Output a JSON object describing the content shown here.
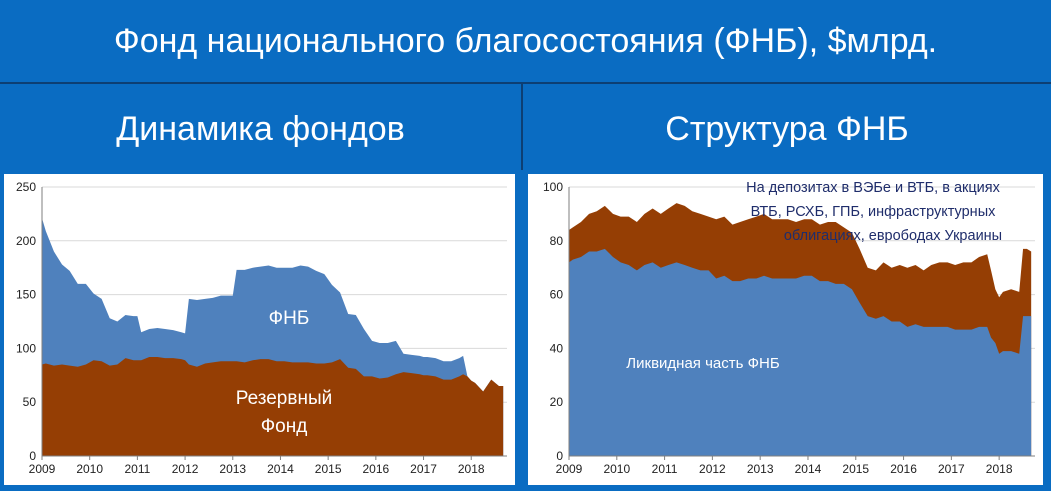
{
  "header": {
    "title": "Фонд национального благосостояния (ФНБ), $млрд."
  },
  "left_heading": "Динамика фондов",
  "right_heading": "Структура ФНБ",
  "colors": {
    "banner": "#0a6cc2",
    "blue_area": "#4f81bd",
    "brown_area": "#953e04",
    "grid": "#d9d9d9"
  },
  "chart_data": [
    {
      "type": "area",
      "title": "",
      "xlabel": "",
      "ylabel": "",
      "xlim": [
        2009.0,
        2018.75
      ],
      "ylim": [
        0,
        250
      ],
      "yticks": [
        0,
        50,
        100,
        150,
        200,
        250
      ],
      "xticks": [
        "2009",
        "2010",
        "2011",
        "2012",
        "2013",
        "2014",
        "2015",
        "2016",
        "2017",
        "2018"
      ],
      "grid": true,
      "x": [
        2009.0,
        2009.08,
        2009.25,
        2009.42,
        2009.58,
        2009.75,
        2009.92,
        2010.08,
        2010.25,
        2010.42,
        2010.58,
        2010.75,
        2010.92,
        2011.0,
        2011.08,
        2011.25,
        2011.42,
        2011.58,
        2011.75,
        2011.92,
        2012.0,
        2012.08,
        2012.25,
        2012.42,
        2012.58,
        2012.75,
        2012.92,
        2013.0,
        2013.08,
        2013.25,
        2013.42,
        2013.58,
        2013.75,
        2013.92,
        2014.08,
        2014.25,
        2014.42,
        2014.58,
        2014.75,
        2014.92,
        2015.08,
        2015.25,
        2015.42,
        2015.58,
        2015.75,
        2015.92,
        2016.08,
        2016.25,
        2016.42,
        2016.58,
        2016.75,
        2016.92,
        2017.0,
        2017.08,
        2017.25,
        2017.42,
        2017.58,
        2017.75,
        2017.83,
        2017.92,
        2018.0,
        2018.08,
        2018.25,
        2018.42,
        2018.58,
        2018.67
      ],
      "series": [
        {
          "name": "ФНБ",
          "values": [
            85,
            86,
            84,
            85,
            84,
            83,
            85,
            89,
            88,
            84,
            85,
            91,
            89,
            89,
            89,
            92,
            92,
            91,
            91,
            90,
            89,
            85,
            83,
            86,
            87,
            88,
            88,
            88,
            88,
            87,
            89,
            90,
            90,
            88,
            88,
            87,
            87,
            87,
            86,
            86,
            87,
            90,
            82,
            81,
            74,
            74,
            72,
            73,
            76,
            78,
            77,
            76,
            75,
            75,
            74,
            71,
            71,
            74,
            76,
            74,
            70,
            68,
            60,
            71,
            65,
            65
          ]
        },
        {
          "name": "Резервный Фонд",
          "values": [
            136,
            123,
            106,
            93,
            88,
            77,
            75,
            62,
            58,
            44,
            40,
            40,
            41,
            41,
            26,
            26,
            27,
            27,
            26,
            25,
            25,
            61,
            62,
            60,
            60,
            61,
            61,
            61,
            85,
            86,
            86,
            86,
            87,
            87,
            87,
            88,
            90,
            89,
            86,
            83,
            72,
            62,
            50,
            50,
            44,
            33,
            33,
            32,
            31,
            17,
            17,
            17,
            17,
            17,
            17,
            17,
            17,
            17,
            17,
            0,
            0,
            0,
            0,
            0,
            0,
            0
          ]
        }
      ],
      "annotations": [
        "ФНБ",
        "Резервный",
        "Фонд"
      ]
    },
    {
      "type": "area",
      "title": "",
      "xlabel": "",
      "ylabel": "",
      "xlim": [
        2009.0,
        2018.75
      ],
      "ylim": [
        0,
        100
      ],
      "yticks": [
        0,
        20,
        40,
        60,
        80,
        100
      ],
      "xticks": [
        "2009",
        "2010",
        "2011",
        "2012",
        "2013",
        "2014",
        "2015",
        "2016",
        "2017",
        "2018"
      ],
      "grid": true,
      "x": [
        2009.0,
        2009.08,
        2009.25,
        2009.42,
        2009.58,
        2009.75,
        2009.92,
        2010.08,
        2010.25,
        2010.42,
        2010.58,
        2010.75,
        2010.92,
        2011.08,
        2011.25,
        2011.42,
        2011.58,
        2011.75,
        2011.92,
        2012.08,
        2012.25,
        2012.42,
        2012.58,
        2012.75,
        2012.92,
        2013.08,
        2013.25,
        2013.42,
        2013.58,
        2013.75,
        2013.92,
        2014.08,
        2014.25,
        2014.42,
        2014.58,
        2014.75,
        2014.92,
        2015.08,
        2015.25,
        2015.42,
        2015.58,
        2015.75,
        2015.92,
        2016.08,
        2016.25,
        2016.42,
        2016.58,
        2016.75,
        2016.92,
        2017.08,
        2017.25,
        2017.42,
        2017.58,
        2017.75,
        2017.83,
        2017.92,
        2018.0,
        2018.08,
        2018.25,
        2018.42,
        2018.5,
        2018.58,
        2018.67
      ],
      "series": [
        {
          "name": "Ликвидная часть ФНБ",
          "values": [
            72,
            73,
            74,
            76,
            76,
            77,
            74,
            72,
            71,
            69,
            71,
            72,
            70,
            71,
            72,
            71,
            70,
            69,
            69,
            66,
            67,
            65,
            65,
            66,
            66,
            67,
            66,
            66,
            66,
            66,
            67,
            67,
            65,
            65,
            64,
            64,
            62,
            57,
            52,
            51,
            52,
            50,
            50,
            48,
            49,
            48,
            48,
            48,
            48,
            47,
            47,
            47,
            48,
            48,
            44,
            42,
            38,
            39,
            39,
            38,
            52,
            52,
            52
          ]
        },
        {
          "name": "",
          "values": [
            12,
            12,
            13,
            14,
            15,
            16,
            16,
            17,
            18,
            18,
            19,
            20,
            20,
            21,
            22,
            22,
            21,
            21,
            20,
            22,
            22,
            21,
            22,
            22,
            23,
            23,
            22,
            22,
            22,
            21,
            21,
            21,
            21,
            22,
            23,
            21,
            21,
            20,
            18,
            18,
            20,
            20,
            21,
            22,
            22,
            21,
            23,
            24,
            24,
            24,
            25,
            25,
            26,
            27,
            25,
            20,
            21,
            22,
            23,
            23,
            25,
            25,
            24
          ]
        }
      ],
      "annotations": [
        "На депозитах в ВЭБе и ВТБ, в акциях",
        "ВТБ, РСХБ, ГПБ, инфраструктурных",
        "облигациях, еврободах Украины",
        "Ликвидная часть ФНБ"
      ]
    }
  ]
}
